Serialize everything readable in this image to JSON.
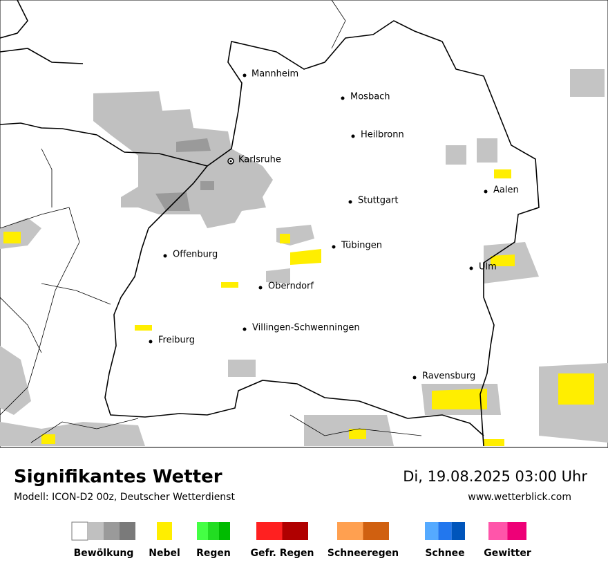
{
  "map": {
    "cities": [
      "Mannheim",
      "Mosbach",
      "Heilbronn",
      "Karlsruhe",
      "Aalen",
      "Stuttgart",
      "Tübingen",
      "Offenburg",
      "Ulm",
      "Oberndorf",
      "Villingen-Schwenningen",
      "Freiburg",
      "Ravensburg"
    ]
  },
  "footer": {
    "title": "Signifikantes Wetter",
    "model": "Modell: ICON-D2 00z, Deutscher Wetterdienst",
    "datetime": "Di, 19.08.2025 03:00 Uhr",
    "url": "www.wetterblick.com"
  },
  "legend": [
    {
      "label": "Bewölkung",
      "colors": [
        "#ffffff",
        "#c0c0c0",
        "#9a9a9a",
        "#7a7a7a"
      ]
    },
    {
      "label": "Nebel",
      "colors": [
        "#ffee00"
      ]
    },
    {
      "label": "Regen",
      "colors": [
        "#44ff44",
        "#22dd22",
        "#00bb00"
      ]
    },
    {
      "label": "Gefr. Regen",
      "colors": [
        "#ff2020",
        "#b00000"
      ]
    },
    {
      "label": "Schneeregen",
      "colors": [
        "#ffa050",
        "#d06010"
      ]
    },
    {
      "label": "Schnee",
      "colors": [
        "#55aaff",
        "#2277ee",
        "#0055bb"
      ]
    },
    {
      "label": "Gewitter",
      "colors": [
        "#ff55aa",
        "#ee0077"
      ]
    }
  ]
}
